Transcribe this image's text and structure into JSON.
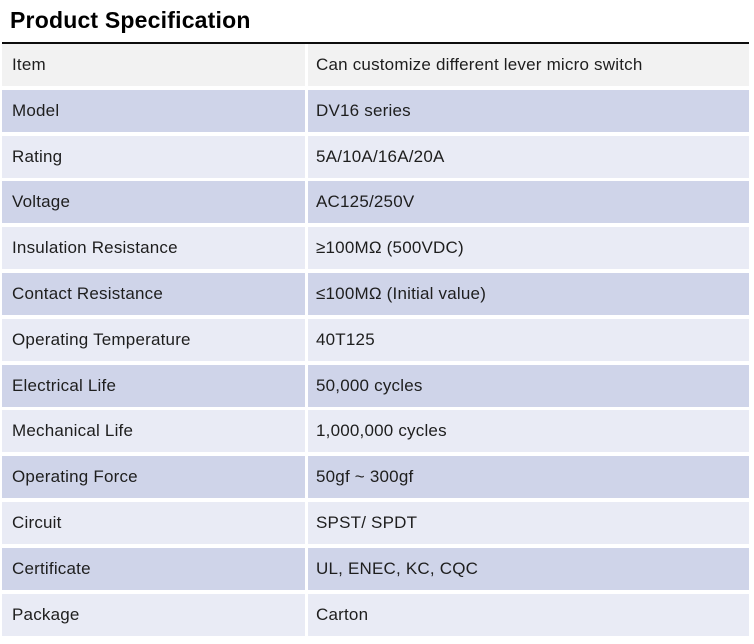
{
  "page": {
    "title": "Product Specification"
  },
  "colors": {
    "top_border": "#0d0d0d",
    "header_row_bg": "#f2f2f2",
    "band_medium": "#cfd4e9",
    "band_light": "#e9ebf5",
    "gutter": "#ffffff",
    "text": "#1e1e1e"
  },
  "table": {
    "rows": [
      {
        "label": "Item",
        "value": "Can customize different lever micro switch"
      },
      {
        "label": "Model",
        "value": "DV16 series"
      },
      {
        "label": "Rating",
        "value": "5A/10A/16A/20A"
      },
      {
        "label": "Voltage",
        "value": "AC125/250V"
      },
      {
        "label": "Insulation Resistance",
        "value": "≥100MΩ (500VDC)"
      },
      {
        "label": "Contact Resistance",
        "value": "≤100MΩ (Initial value)"
      },
      {
        "label": "Operating Temperature",
        "value": "40T125"
      },
      {
        "label": "Electrical Life",
        "value": "50,000 cycles"
      },
      {
        "label": "Mechanical Life",
        "value": "1,000,000 cycles"
      },
      {
        "label": "Operating Force",
        "value": "50gf ~ 300gf"
      },
      {
        "label": "Circuit",
        "value": "SPST/ SPDT"
      },
      {
        "label": "Certificate",
        "value": "UL, ENEC, KC, CQC"
      },
      {
        "label": "Package",
        "value": "Carton"
      }
    ]
  }
}
